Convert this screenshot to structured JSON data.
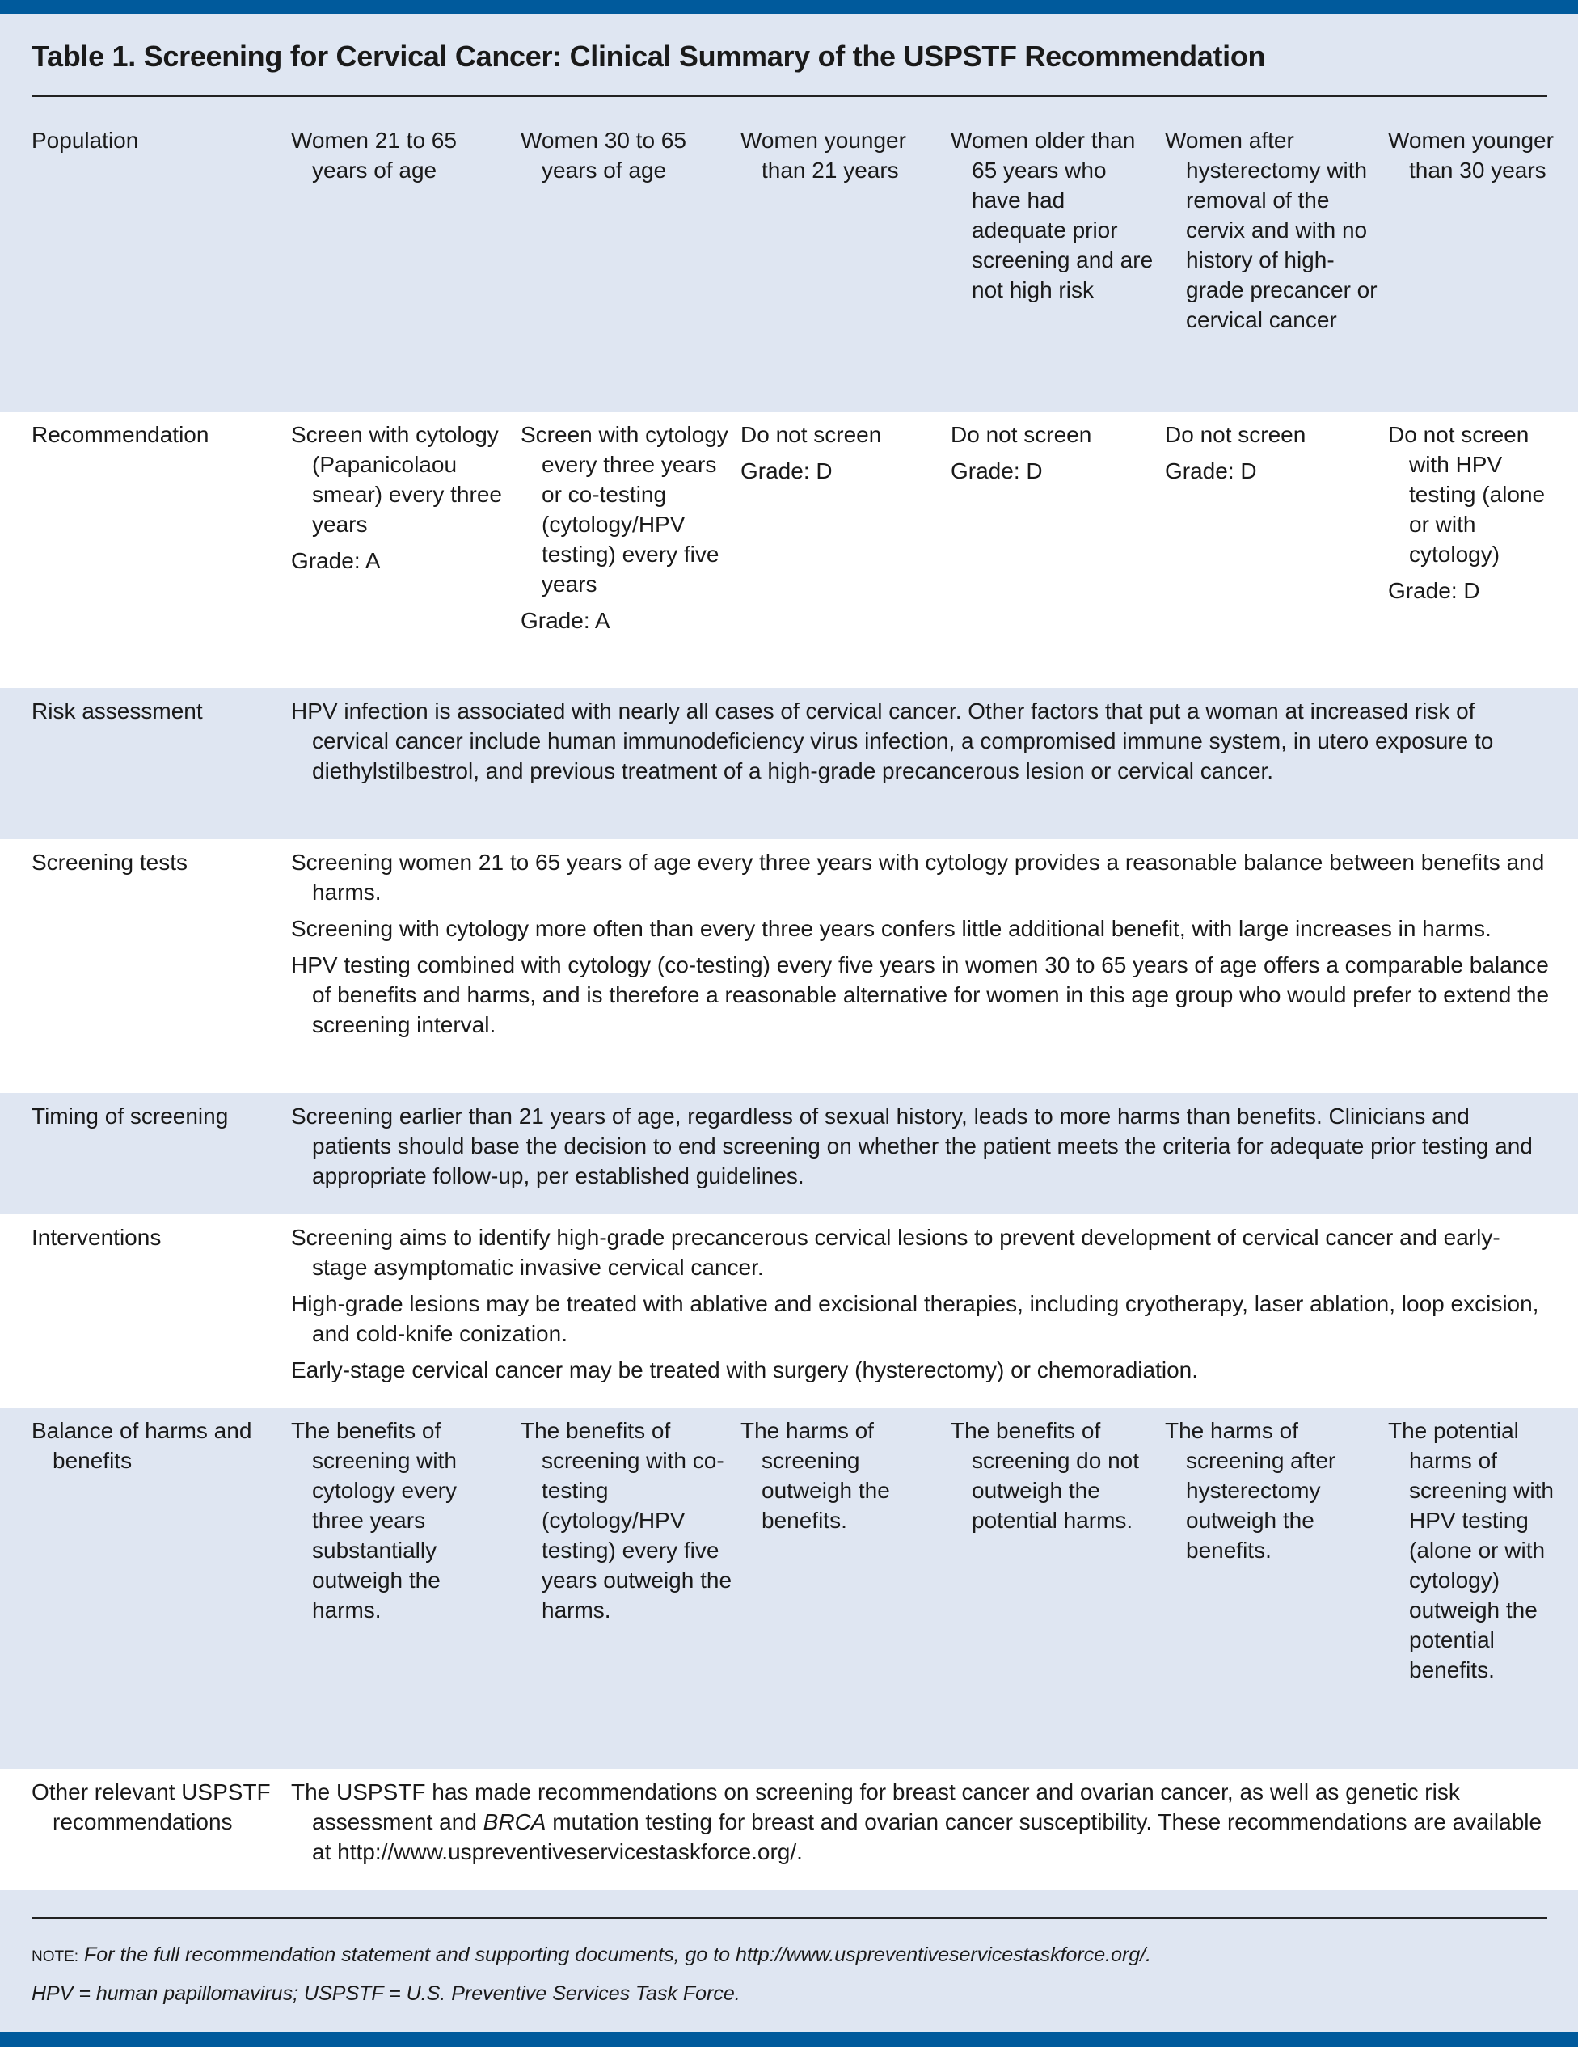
{
  "colors": {
    "accent_bar": "#005a9c",
    "shade": "#dfe6f2",
    "white": "#ffffff"
  },
  "title": "Table 1. Screening for Cervical Cancer: Clinical Summary of the USPSTF Recommendation",
  "rows": {
    "population": {
      "label": "Population",
      "cells": [
        "Women 21 to 65 years of age",
        "Women 30 to 65 years of age",
        "Women younger than 21 years",
        "Women older than 65 years who have had adequate prior screening and are not high risk",
        "Women after hysterectomy with removal of the cervix and with no history of high-grade precancer or cervical cancer",
        "Women younger than 30 years"
      ]
    },
    "recommendation": {
      "label": "Recommendation",
      "cells": [
        {
          "text": "Screen with cytology (Papanicolaou smear) every three years",
          "grade": "Grade: A"
        },
        {
          "text": "Screen with cytology every three years or co-testing (cytology/HPV testing) every five years",
          "grade": "Grade: A"
        },
        {
          "text": "Do not screen",
          "grade": "Grade: D"
        },
        {
          "text": "Do not screen",
          "grade": "Grade: D"
        },
        {
          "text": "Do not screen",
          "grade": "Grade: D"
        },
        {
          "text": "Do not screen with HPV testing (alone or with cytology)",
          "grade": "Grade: D"
        }
      ]
    },
    "risk": {
      "label": "Risk assessment",
      "paragraphs": [
        "HPV infection is associated with nearly all cases of cervical cancer. Other factors that put a woman at increased risk of cervical cancer include human immunodeficiency virus infection, a compromised immune system, in utero exposure to diethylstilbestrol, and previous treatment of a high-grade precancerous lesion or cervical cancer."
      ]
    },
    "screening_tests": {
      "label": "Screening tests",
      "paragraphs": [
        "Screening women 21 to 65 years of age every three years with cytology provides a reasonable balance between benefits and harms.",
        "Screening with cytology more often than every three years confers little additional benefit, with large increases in harms.",
        "HPV testing combined with cytology (co-testing) every five years in women 30 to 65 years of age offers a comparable balance of benefits and harms, and is therefore a reasonable alternative for women in this age group who would prefer to extend the screening interval."
      ]
    },
    "timing": {
      "label": "Timing of screening",
      "paragraphs": [
        "Screening earlier than 21 years of age, regardless of sexual history, leads to more harms than benefits. Clinicians and patients should base the decision to end screening on whether the patient meets the criteria for adequate prior testing and appropriate follow-up, per established guidelines."
      ]
    },
    "interventions": {
      "label": "Interventions",
      "paragraphs": [
        "Screening aims to identify high-grade precancerous cervical lesions to prevent development of cervical cancer and early-stage asymptomatic invasive cervical cancer.",
        "High-grade lesions may be treated with ablative and excisional therapies, including cryotherapy, laser ablation, loop excision, and cold-knife conization.",
        "Early-stage cervical cancer may be treated with surgery (hysterectomy) or chemoradiation."
      ]
    },
    "balance": {
      "label": "Balance of harms and benefits",
      "cells": [
        "The benefits of screening with cytology every three years substantially outweigh the harms.",
        "The benefits of screening with co-testing (cytology/HPV testing) every five years outweigh the harms.",
        "The harms of screening outweigh the benefits.",
        "The benefits of screening do not outweigh the potential harms.",
        "The harms of screening after hysterectomy outweigh the benefits.",
        "The potential harms of screening with HPV testing (alone or with cytology) outweigh the potential benefits."
      ]
    },
    "other": {
      "label": "Other relevant USPSTF recommendations",
      "text_before": "The USPSTF has made recommendations on screening for breast cancer and ovarian cancer, as well as genetic risk assessment and ",
      "text_italic": "BRCA",
      "text_after": " mutation testing for breast and ovarian cancer susceptibility. These recommendations are available at http://www.uspreventiveservicestaskforce.org/."
    }
  },
  "footer": {
    "note_label": "NOTE:",
    "note_text": " For the full recommendation statement and supporting documents, go to http://www.uspreventiveservicestaskforce.org/.",
    "abbreviations": "HPV = human papillomavirus; USPSTF = U.S. Preventive Services Task Force."
  }
}
